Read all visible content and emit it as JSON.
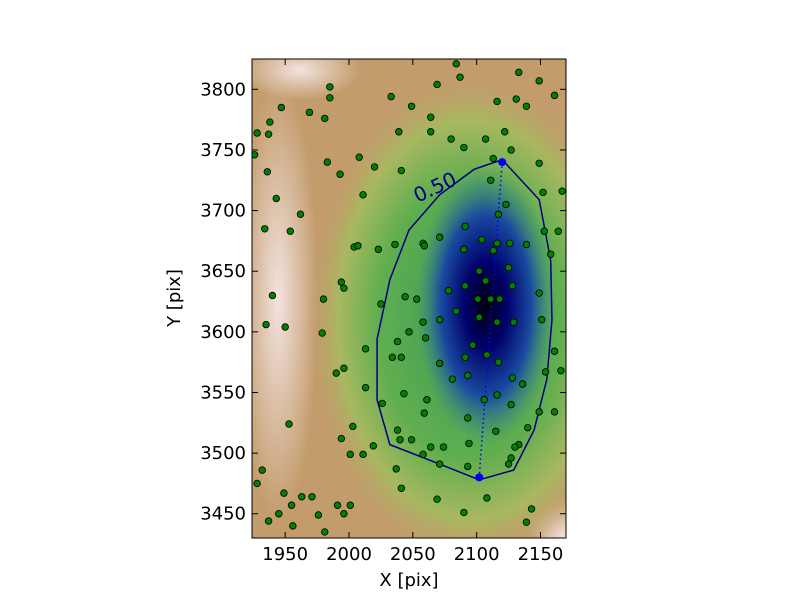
{
  "chart_data": {
    "type": "scatter",
    "xlabel": "X [pix]",
    "ylabel": "Y [pix]",
    "xlim": [
      1924,
      2170
    ],
    "ylim": [
      3430,
      3825
    ],
    "xticks": [
      1950,
      2000,
      2050,
      2100,
      2150
    ],
    "yticks": [
      3450,
      3500,
      3550,
      3600,
      3650,
      3700,
      3750,
      3800
    ],
    "series": [
      {
        "color": "#008000",
        "x": [
          1926,
          1928,
          1936,
          1938,
          1937,
          1947,
          1943,
          1934,
          1954,
          1962,
          1940,
          1935,
          1950,
          1953,
          1932,
          1928,
          1937,
          1949,
          1945,
          1955,
          1956,
          1963,
          1971,
          1976,
          1981,
          1991,
          1996,
          2001,
          1994,
          2001,
          2011,
          2019,
          2003,
          1990,
          1996,
          1979,
          1980,
          1994,
          1996,
          2004,
          2013,
          2013,
          2026,
          2025,
          2034,
          2038,
          2041,
          2044,
          2047,
          2043,
          2038,
          2040,
          2049,
          2058,
          2071,
          2064,
          2074,
          2094,
          2093,
          2093,
          2108,
          2090,
          2069,
          2041,
          2037,
          2059,
          2061,
          2071,
          2081,
          2093,
          2091,
          2106,
          2116,
          2127,
          2136,
          2128,
          2117,
          2149,
          2140,
          2133,
          2125,
          2127,
          2130,
          2115,
          2154,
          2161,
          2166,
          2161,
          2151,
          2149,
          2158,
          2164,
          2153,
          2152,
          2167,
          2149,
          2127,
          2139,
          2149,
          2161,
          2133,
          2116,
          2084,
          2087,
          2069,
          2049,
          2033,
          2039,
          2064,
          2064,
          2080,
          2090,
          2111,
          2113,
          2122,
          2131,
          2107,
          2041,
          2020,
          2011,
          2008,
          1993,
          1983,
          1981,
          1985,
          1985,
          1969,
          2007,
          2023,
          2036,
          2058,
          2059,
          2071,
          2091,
          2090,
          2104,
          2116,
          2126,
          2139,
          2123,
          2117,
          2113,
          2125,
          2102,
          2107,
          2091,
          2078,
          2084,
          2101,
          2111,
          2102,
          2116,
          2129,
          2128,
          2118,
          2097,
          2108,
          2053,
          2058,
          2060,
          2071,
          2143,
          2139
        ],
        "y": [
          3746,
          3764,
          3732,
          3773,
          3763,
          3785,
          3710,
          3685,
          3683,
          3697,
          3630,
          3606,
          3604,
          3524,
          3486,
          3475,
          3444,
          3467,
          3450,
          3457,
          3440,
          3464,
          3464,
          3449,
          3435,
          3457,
          3450,
          3457,
          3512,
          3499,
          3499,
          3506,
          3522,
          3566,
          3570,
          3599,
          3627,
          3641,
          3636,
          3670,
          3586,
          3554,
          3541,
          3623,
          3579,
          3592,
          3579,
          3629,
          3600,
          3549,
          3519,
          3511,
          3511,
          3499,
          3491,
          3505,
          3505,
          3508,
          3529,
          3489,
          3463,
          3451,
          3462,
          3471,
          3487,
          3533,
          3544,
          3574,
          3561,
          3564,
          3579,
          3544,
          3548,
          3540,
          3557,
          3562,
          3575,
          3534,
          3521,
          3507,
          3491,
          3496,
          3505,
          3518,
          3567,
          3534,
          3568,
          3584,
          3610,
          3632,
          3664,
          3683,
          3683,
          3715,
          3716,
          3739,
          3750,
          3786,
          3807,
          3795,
          3814,
          3790,
          3821,
          3810,
          3804,
          3786,
          3794,
          3765,
          3765,
          3777,
          3759,
          3752,
          3725,
          3743,
          3765,
          3792,
          3759,
          3733,
          3736,
          3713,
          3744,
          3730,
          3740,
          3776,
          3802,
          3793,
          3781,
          3671,
          3668,
          3672,
          3673,
          3671,
          3678,
          3687,
          3668,
          3676,
          3673,
          3673,
          3672,
          3705,
          3697,
          3667,
          3653,
          3650,
          3642,
          3638,
          3634,
          3617,
          3627,
          3627,
          3612,
          3608,
          3608,
          3638,
          3627,
          3589,
          3581,
          3627,
          3608,
          3595,
          3610,
          3454,
          3443
        ]
      }
    ],
    "contour": {
      "level": {
        "value": 0.5,
        "label": "0.50"
      },
      "color": "#000080",
      "x": [
        2120,
        2149,
        2158,
        2159,
        2155,
        2145,
        2129,
        2102,
        2071,
        2032,
        2022,
        2022,
        2032,
        2047,
        2071,
        2098
      ],
      "y": [
        3742,
        3709,
        3659,
        3610,
        3561,
        3519,
        3486,
        3478,
        3491,
        3507,
        3544,
        3594,
        3643,
        3684,
        3713,
        3734
      ]
    },
    "axis_line": {
      "color": "#0000ff",
      "x": [
        2120,
        2102
      ],
      "y": [
        3740,
        3480
      ]
    }
  }
}
